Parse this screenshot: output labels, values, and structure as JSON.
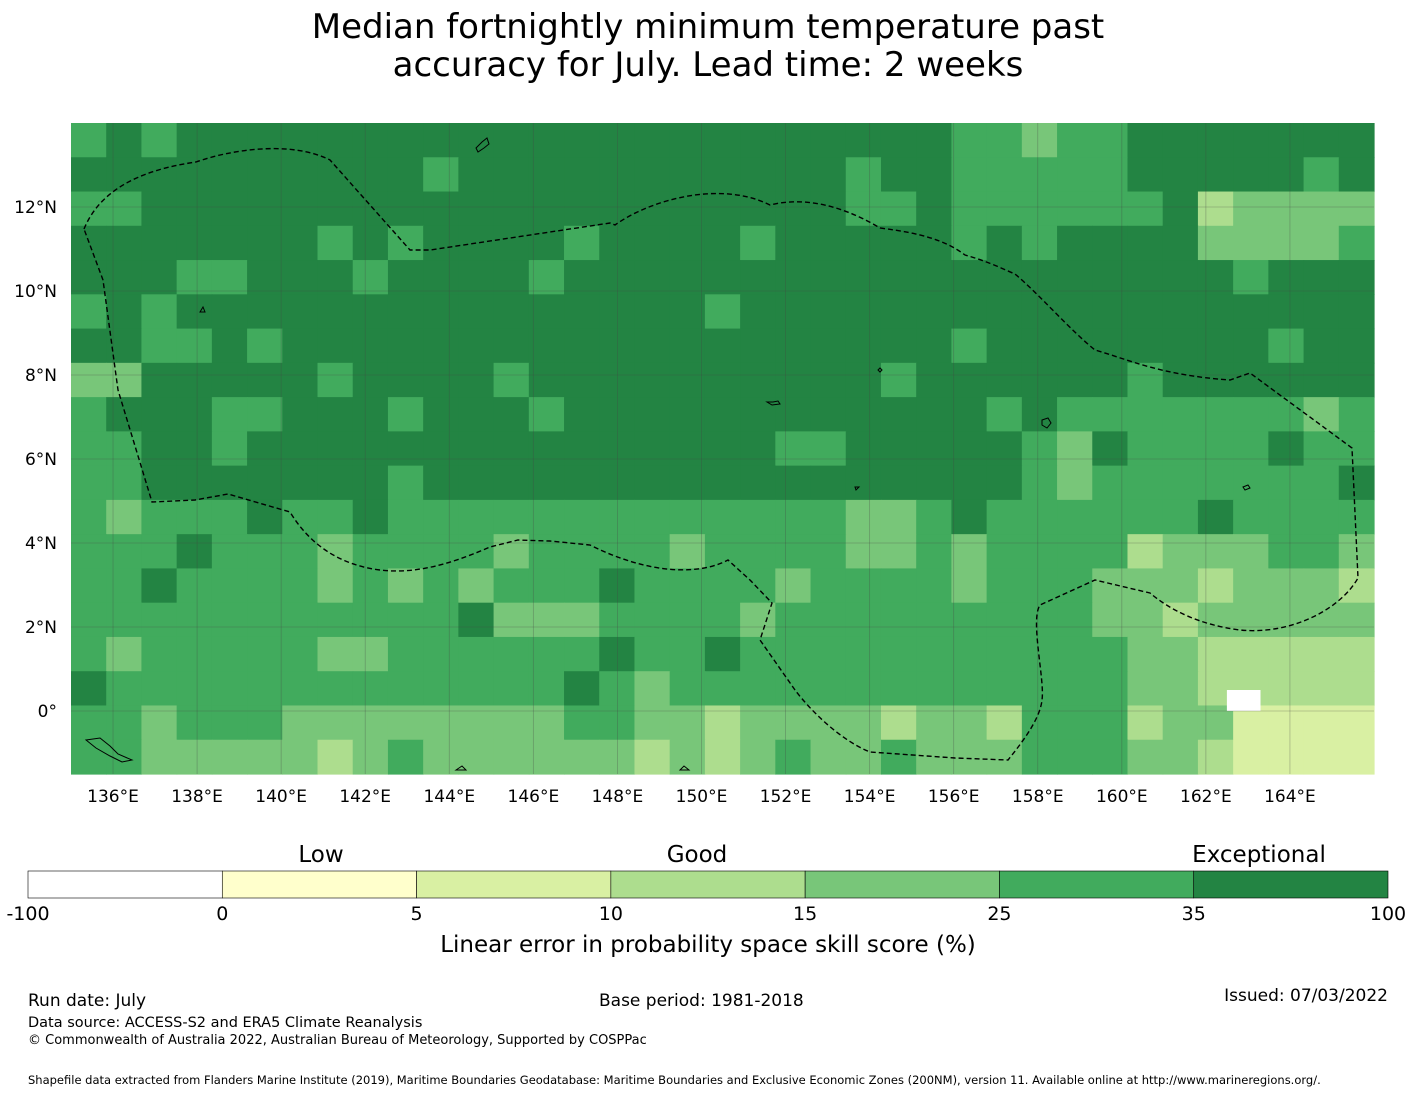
{
  "title": {
    "line1": "Median fortnightly minimum temperature past",
    "line2": "accuracy for July. Lead time: 2 weeks"
  },
  "map": {
    "lon_range": [
      135.0,
      166.0
    ],
    "lat_range": [
      -1.5,
      14.0
    ],
    "lon_ticks": [
      "136°E",
      "138°E",
      "140°E",
      "142°E",
      "144°E",
      "146°E",
      "148°E",
      "150°E",
      "152°E",
      "154°E",
      "156°E",
      "158°E",
      "160°E",
      "162°E",
      "164°E"
    ],
    "lat_ticks": [
      "12°N",
      "10°N",
      "8°N",
      "6°N",
      "4°N",
      "2°N",
      "0°"
    ],
    "eez_boundary_color": "#000000",
    "grid_color": "#444444"
  },
  "colorbar": {
    "categories": [
      {
        "label": "Low"
      },
      {
        "label": "Good"
      },
      {
        "label": "Exceptional"
      }
    ],
    "tick_labels": [
      "-100",
      "0",
      "5",
      "10",
      "15",
      "25",
      "35",
      "100"
    ],
    "colors": [
      "#ffffff",
      "#ffffcc",
      "#d9f0a3",
      "#addd8e",
      "#78c679",
      "#41ab5d",
      "#238443"
    ],
    "label": "Linear error in probability space skill score (%)"
  },
  "footer": {
    "run_date": "Run date: July",
    "base_period": "Base period: 1981-2018",
    "issued": "Issued: 07/03/2022",
    "data_source": "Data source: ACCESS-S2 and ERA5 Climate Reanalysis",
    "copyright": "© Commonwealth of Australia 2022, Australian Bureau of Meteorology, Supported by COSPPac",
    "shapefile": "Shapefile data extracted from Flanders Marine Institute (2019), Maritime Boundaries Geodatabase: Maritime Boundaries and Exclusive Economic Zones (200NM), version 11. Available online at http://www.marineregions.org/."
  }
}
